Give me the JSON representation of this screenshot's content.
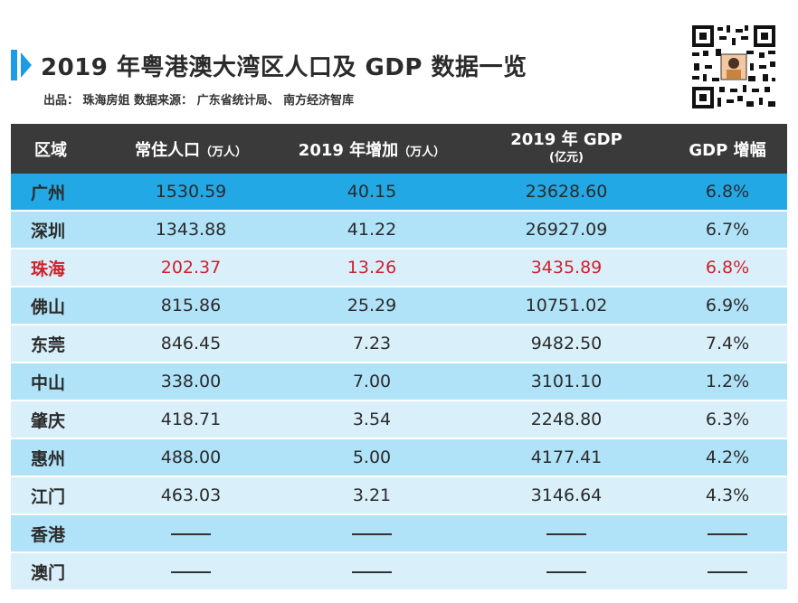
{
  "header": {
    "title": "2019 年粤港澳大湾区人口及 GDP 数据一览",
    "subtitle": "出品： 珠海房姐  数据来源： 广东省统计局、 南方经济智库"
  },
  "colors": {
    "accent": "#1e9be6",
    "header_bg": "#3a3a3a",
    "row_first": "#22a8e5",
    "row_a": "#b0e2f8",
    "row_b": "#d9f0fb",
    "highlight_text": "#d0212b"
  },
  "icons": {
    "qr": "qr-code-icon"
  },
  "table": {
    "columns": [
      {
        "main": "区域",
        "sub": ""
      },
      {
        "main": "常住人口",
        "sub": "（万人）"
      },
      {
        "main": "2019 年增加",
        "sub": "（万人）"
      },
      {
        "main": "2019 年 GDP",
        "sub": "(亿元)"
      },
      {
        "main": "GDP 增幅",
        "sub": ""
      }
    ],
    "rows": [
      {
        "region": "广州",
        "population": "1530.59",
        "increase": "40.15",
        "gdp": "23628.60",
        "growth": "6.8%"
      },
      {
        "region": "深圳",
        "population": "1343.88",
        "increase": "41.22",
        "gdp": "26927.09",
        "growth": "6.7%"
      },
      {
        "region": "珠海",
        "population": "202.37",
        "increase": "13.26",
        "gdp": "3435.89",
        "growth": "6.8%"
      },
      {
        "region": "佛山",
        "population": "815.86",
        "increase": "25.29",
        "gdp": "10751.02",
        "growth": "6.9%"
      },
      {
        "region": "东莞",
        "population": "846.45",
        "increase": "7.23",
        "gdp": "9482.50",
        "growth": "7.4%"
      },
      {
        "region": "中山",
        "population": "338.00",
        "increase": "7.00",
        "gdp": "3101.10",
        "growth": "1.2%"
      },
      {
        "region": "肇庆",
        "population": "418.71",
        "increase": "3.54",
        "gdp": "2248.80",
        "growth": "6.3%"
      },
      {
        "region": "惠州",
        "population": "488.00",
        "increase": "5.00",
        "gdp": "4177.41",
        "growth": "4.2%"
      },
      {
        "region": "江门",
        "population": "463.03",
        "increase": "3.21",
        "gdp": "3146.64",
        "growth": "4.3%"
      },
      {
        "region": "香港",
        "population": "——",
        "increase": "——",
        "gdp": "——",
        "growth": "——"
      },
      {
        "region": "澳门",
        "population": "——",
        "increase": "——",
        "gdp": "——",
        "growth": "——"
      }
    ]
  }
}
